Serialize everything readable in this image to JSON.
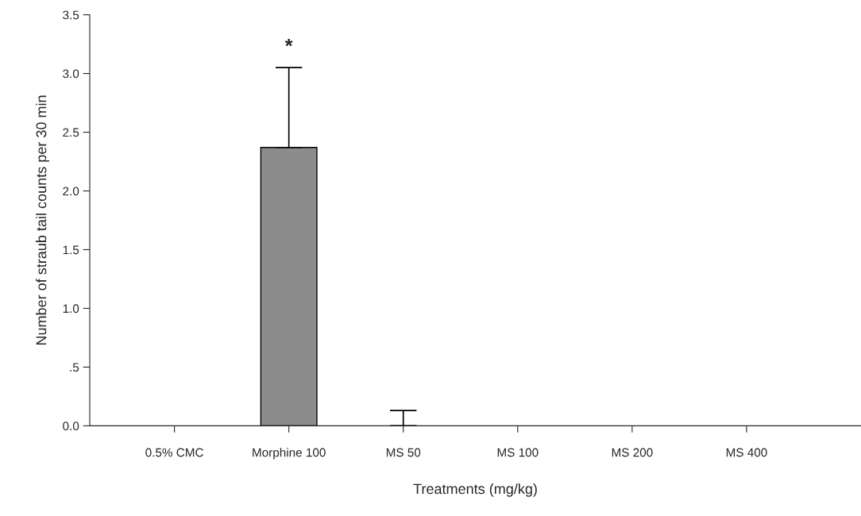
{
  "chart_data": {
    "type": "bar",
    "xlabel": "Treatments (mg/kg)",
    "ylabel": "Number of straub tail counts per 30 min",
    "categories": [
      "0.5% CMC",
      "Morphine 100",
      "MS 50",
      "MS 100",
      "MS 200",
      "MS 400"
    ],
    "values": [
      0,
      2.37,
      0,
      0,
      0,
      0
    ],
    "color": "#8c8c8c",
    "errors": [
      null,
      [
        2.37,
        3.05
      ],
      [
        0,
        0.13
      ],
      null,
      null,
      null
    ],
    "ylim": [
      0,
      3.5
    ],
    "yticks": [
      {
        "value": 0,
        "label": "0.0"
      },
      {
        "value": 0.5,
        "label": ".5"
      },
      {
        "value": 1,
        "label": "1.0"
      },
      {
        "value": 1.5,
        "label": "1.5"
      },
      {
        "value": 2,
        "label": "2.0"
      },
      {
        "value": 2.5,
        "label": "2.5"
      },
      {
        "value": 3,
        "label": "3.0"
      },
      {
        "value": 3.5,
        "label": "3.5"
      }
    ],
    "annotations": [
      "*"
    ],
    "grid": false,
    "legend": false
  }
}
